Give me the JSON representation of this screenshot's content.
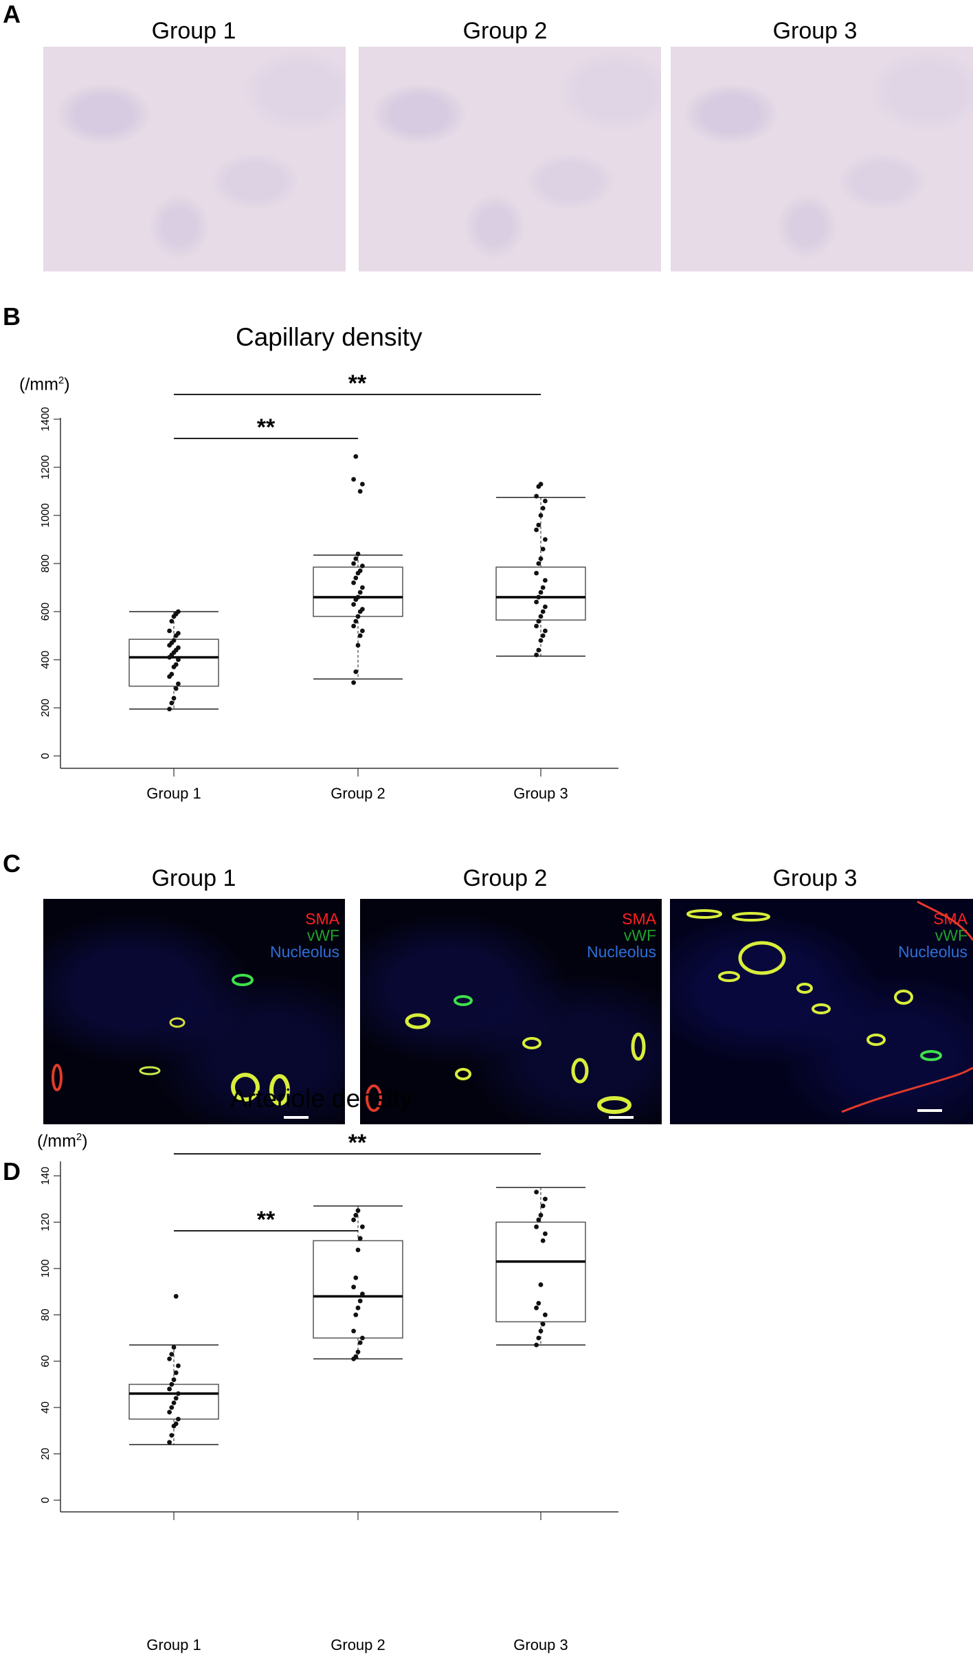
{
  "panels": {
    "A": {
      "letter": "A",
      "groups": [
        "Group 1",
        "Group 2",
        "Group 3"
      ]
    },
    "B": {
      "letter": "B"
    },
    "C": {
      "letter": "C",
      "groups": [
        "Group 1",
        "Group 2",
        "Group 3"
      ],
      "legend": [
        "SMA",
        "vWF",
        "Nucleolus"
      ],
      "legend_colors": [
        "#ff2020",
        "#1fa12a",
        "#2f6fd8"
      ]
    },
    "D": {
      "letter": "D"
    }
  },
  "chart_data": [
    {
      "type": "box",
      "title": "Capillary density",
      "ylabel": "(/mm",
      "ylabel_sup": "2",
      "ylabel_close": ")",
      "ylim": [
        0,
        1400
      ],
      "yticks": [
        0,
        200,
        400,
        600,
        800,
        1000,
        1200,
        1400
      ],
      "categories": [
        "Group 1",
        "Group 2",
        "Group 3"
      ],
      "boxes": [
        {
          "min": 195,
          "q1": 290,
          "median": 410,
          "q3": 485,
          "max": 600
        },
        {
          "min": 320,
          "q1": 580,
          "median": 660,
          "q3": 785,
          "max": 835
        },
        {
          "min": 415,
          "q1": 565,
          "median": 660,
          "q3": 785,
          "max": 1075
        }
      ],
      "points": [
        [
          195,
          220,
          240,
          280,
          300,
          330,
          340,
          370,
          380,
          400,
          410,
          420,
          430,
          440,
          450,
          460,
          470,
          480,
          500,
          510,
          520,
          560,
          580,
          590,
          600
        ],
        [
          305,
          350,
          460,
          500,
          520,
          540,
          560,
          580,
          600,
          610,
          630,
          650,
          660,
          680,
          700,
          720,
          740,
          760,
          770,
          790,
          800,
          820,
          840,
          1100,
          1130,
          1150,
          1245
        ],
        [
          420,
          440,
          480,
          500,
          520,
          540,
          560,
          580,
          600,
          620,
          640,
          660,
          680,
          700,
          730,
          760,
          800,
          820,
          860,
          900,
          940,
          960,
          1000,
          1030,
          1060,
          1080,
          1120,
          1130
        ]
      ],
      "significance": [
        {
          "from": "Group 1",
          "to": "Group 3",
          "label": "**"
        },
        {
          "from": "Group 1",
          "to": "Group 2",
          "label": "**"
        }
      ]
    },
    {
      "type": "box",
      "title": "Arteriole density",
      "ylabel": "(/mm",
      "ylabel_sup": "2",
      "ylabel_close": ")",
      "ylim": [
        0,
        140
      ],
      "yticks": [
        0,
        20,
        40,
        60,
        80,
        100,
        120,
        140
      ],
      "categories": [
        "Group 1",
        "Group 2",
        "Group 3"
      ],
      "boxes": [
        {
          "min": 24,
          "q1": 35,
          "median": 46,
          "q3": 50,
          "max": 67
        },
        {
          "min": 61,
          "q1": 70,
          "median": 88,
          "q3": 112,
          "max": 127
        },
        {
          "min": 67,
          "q1": 77,
          "median": 103,
          "q3": 120,
          "max": 135
        }
      ],
      "points": [
        [
          25,
          28,
          32,
          33,
          35,
          38,
          40,
          42,
          44,
          46,
          48,
          50,
          52,
          55,
          58,
          61,
          63,
          66,
          88
        ],
        [
          61,
          62,
          64,
          68,
          70,
          73,
          80,
          83,
          86,
          89,
          92,
          96,
          108,
          113,
          118,
          121,
          123,
          125
        ],
        [
          67,
          70,
          73,
          76,
          80,
          83,
          85,
          93,
          112,
          115,
          118,
          121,
          123,
          127,
          130,
          133
        ]
      ],
      "significance": [
        {
          "from": "Group 1",
          "to": "Group 3",
          "label": "**"
        },
        {
          "from": "Group 1",
          "to": "Group 2",
          "label": "**"
        }
      ]
    }
  ]
}
